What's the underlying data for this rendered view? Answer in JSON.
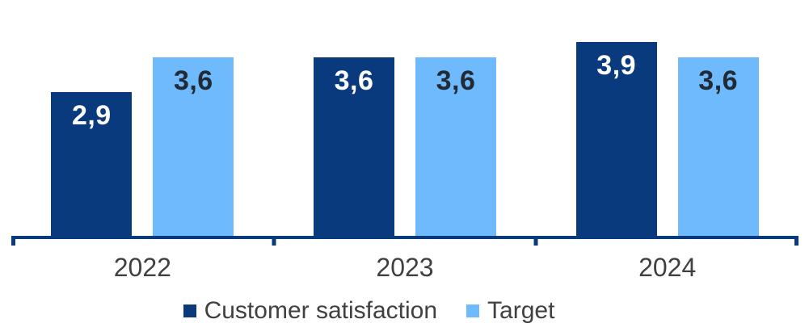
{
  "chart_data": {
    "type": "bar",
    "title": "",
    "categories": [
      "2022",
      "2023",
      "2024"
    ],
    "series": [
      {
        "name": "Customer satisfaction",
        "color": "#083a7d",
        "label_color": "#ffffff",
        "values": [
          2.9,
          3.6,
          3.9
        ],
        "labels": [
          "2,9",
          "3,6",
          "3,9"
        ]
      },
      {
        "name": "Target",
        "color": "#6ebafc",
        "label_color": "#222a35",
        "values": [
          3.6,
          3.6,
          3.6
        ],
        "labels": [
          "3,6",
          "3,6",
          "3,6"
        ]
      }
    ],
    "ylim": [
      0,
      3.9
    ],
    "value_decimal_separator": ",",
    "grid": false,
    "y_axis_visible": false,
    "legend_position": "bottom",
    "axis_color": "#083a7d",
    "tick_label_color": "#404040",
    "legend_text_color": "#404040",
    "background": "#ffffff"
  }
}
